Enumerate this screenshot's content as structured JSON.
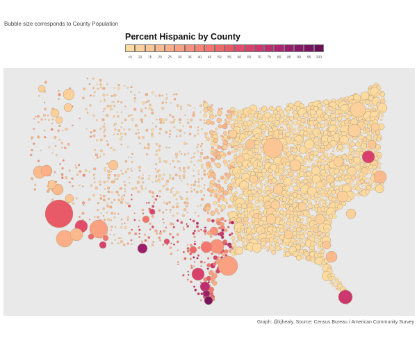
{
  "header": {
    "subtitle": "Bubble size corresponds to County Population"
  },
  "legend": {
    "title": "Percent Hispanic by County",
    "labels": [
      "<5",
      "10",
      "15",
      "20",
      "25",
      "30",
      "35",
      "40",
      "45",
      "50",
      "55",
      "60",
      "65",
      "70",
      "75",
      "80",
      "85",
      "90",
      "95",
      "100"
    ],
    "colors": [
      "#fcdba0",
      "#fcd09a",
      "#fcc594",
      "#fbba8e",
      "#fbaf88",
      "#faa182",
      "#f9927b",
      "#f78475",
      "#f4766f",
      "#ef686b",
      "#e95a69",
      "#e14d6a",
      "#d8416c",
      "#cc376e",
      "#bd2d6f",
      "#ad256e",
      "#9c1e6b",
      "#8b1866",
      "#7a145f",
      "#6a1058"
    ]
  },
  "caption": {
    "text": "Graph: @kjhealy. Source: Census Bureau / American Community Survey"
  },
  "map": {
    "background": "#e9e9e9",
    "bubble_stroke": "#b39a7a"
  }
}
